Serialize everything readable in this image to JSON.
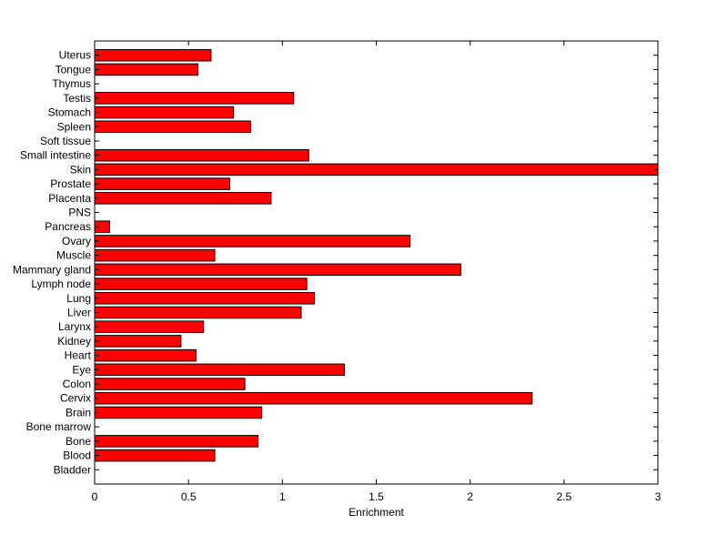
{
  "chart_data": {
    "type": "bar",
    "orientation": "horizontal",
    "title": "",
    "xlabel": "Enrichment",
    "ylabel": "",
    "xlim": [
      0,
      3
    ],
    "xticks": [
      0,
      0.5,
      1,
      1.5,
      2,
      2.5,
      3
    ],
    "xtick_labels": [
      "0",
      "0.5",
      "1",
      "1.5",
      "2",
      "2.5",
      "3"
    ],
    "grid": false,
    "legend": "none",
    "bar_color": "#ff0000",
    "edge_color": "#000000",
    "categories": [
      "Bladder",
      "Blood",
      "Bone",
      "Bone marrow",
      "Brain",
      "Cervix",
      "Colon",
      "Eye",
      "Heart",
      "Kidney",
      "Larynx",
      "Liver",
      "Lung",
      "Lymph node",
      "Mammary gland",
      "Muscle",
      "Ovary",
      "Pancreas",
      "PNS",
      "Placenta",
      "Prostate",
      "Skin",
      "Small intestine",
      "Soft tissue",
      "Spleen",
      "Stomach",
      "Testis",
      "Thymus",
      "Tongue",
      "Uterus"
    ],
    "values": [
      0,
      0.64,
      0.87,
      0,
      0.89,
      2.33,
      0.8,
      1.33,
      0.54,
      0.46,
      0.58,
      1.1,
      1.17,
      1.13,
      1.95,
      0.64,
      1.68,
      0.08,
      0,
      0.94,
      0.72,
      3.0,
      1.14,
      0,
      0.83,
      0.74,
      1.06,
      0,
      0.55,
      0.62
    ]
  }
}
